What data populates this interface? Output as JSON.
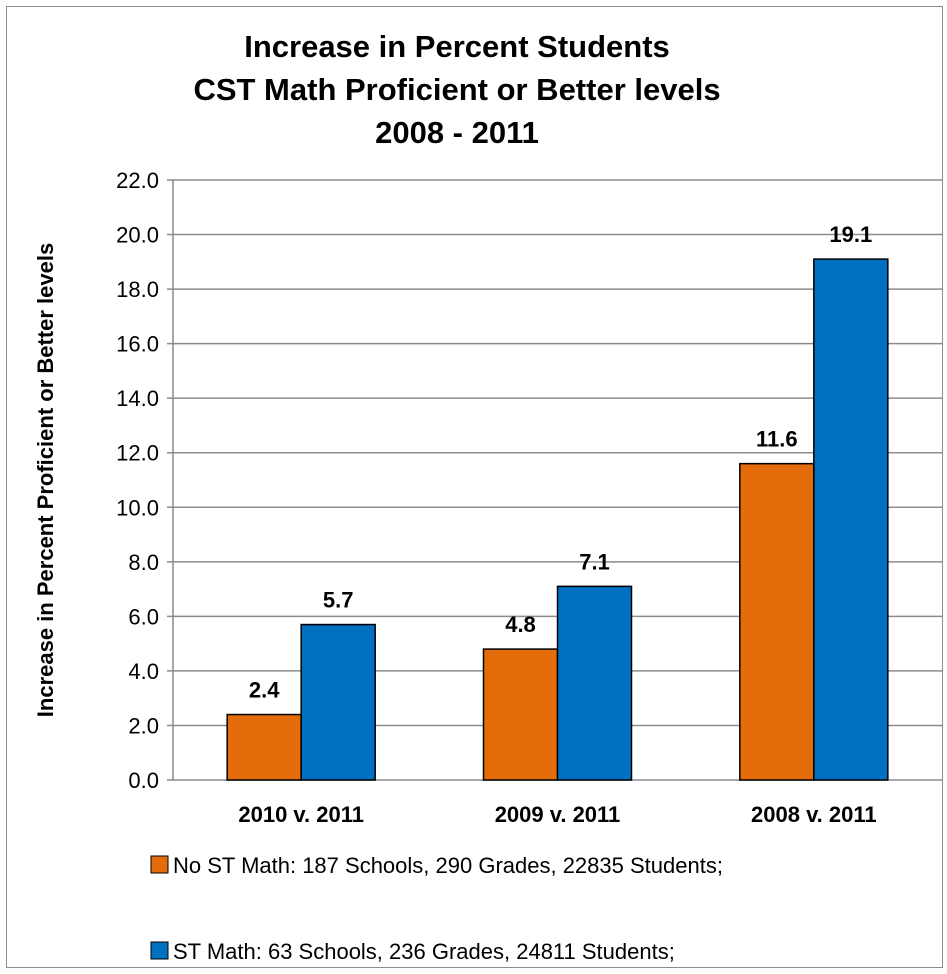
{
  "chart_data": {
    "type": "bar",
    "title_lines": [
      "Increase in Percent Students",
      "CST Math Proficient or Better levels",
      "2008 - 2011"
    ],
    "ylabel": "Increase in Percent Proficient or Better levels",
    "xlabel": "",
    "ylim": [
      0,
      22
    ],
    "ytick_step": 2,
    "yticks": [
      "0.0",
      "2.0",
      "4.0",
      "6.0",
      "8.0",
      "10.0",
      "12.0",
      "14.0",
      "16.0",
      "18.0",
      "20.0",
      "22.0"
    ],
    "grid": true,
    "legend_position": "bottom",
    "categories": [
      "2010 v. 2011",
      "2009 v. 2011",
      "2008 v. 2011"
    ],
    "series": [
      {
        "name": "No ST Math: 187 Schools, 290 Grades, 22835 Students;",
        "color": "#e46c0a",
        "values": [
          2.4,
          4.8,
          11.6
        ],
        "labels": [
          "2.4",
          "4.8",
          "11.6"
        ]
      },
      {
        "name": "ST Math: 63 Schools, 236 Grades, 24811 Students;",
        "color": "#0070c0",
        "values": [
          5.7,
          7.1,
          19.1
        ],
        "labels": [
          "5.7",
          "7.1",
          "19.1"
        ]
      }
    ]
  }
}
